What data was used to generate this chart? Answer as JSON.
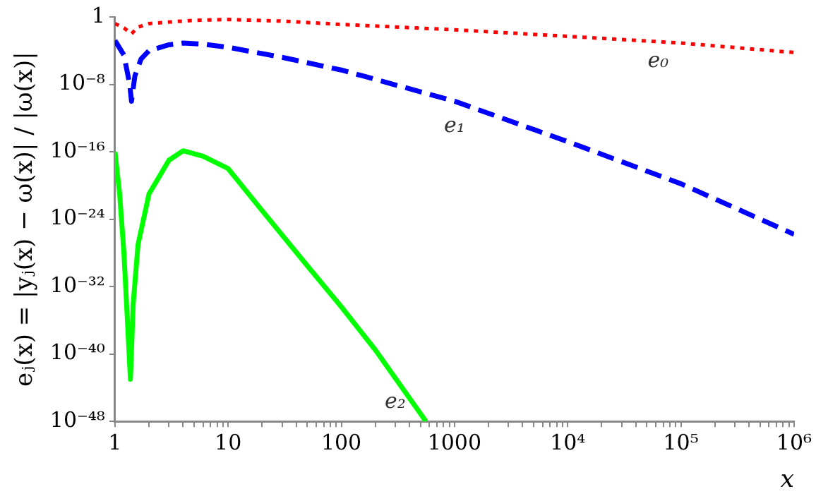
{
  "chart_data": {
    "type": "line",
    "xlabel": "x",
    "ylabel": "eⱼ(x) = |yⱼ(x) − ω(x)| / |ω(x)|",
    "log": "xy",
    "grid": false,
    "legend": false,
    "marker": "none",
    "xlim": [
      1,
      1000000
    ],
    "ylim": [
      1e-48,
      1
    ],
    "xticks": [
      1,
      {
        "value": 2,
        "label": null
      },
      {
        "value": 3,
        "label": null
      },
      {
        "value": 4,
        "label": null
      },
      {
        "value": 5,
        "label": null
      },
      {
        "value": 6,
        "label": null
      },
      {
        "value": 7,
        "label": null
      },
      {
        "value": 8,
        "label": null
      },
      {
        "value": 9,
        "label": null
      },
      10,
      {
        "value": 20,
        "label": null
      },
      {
        "value": 30,
        "label": null
      },
      {
        "value": 40,
        "label": null
      },
      {
        "value": 50,
        "label": null
      },
      {
        "value": 60,
        "label": null
      },
      {
        "value": 70,
        "label": null
      },
      {
        "value": 80,
        "label": null
      },
      {
        "value": 90,
        "label": null
      },
      100,
      {
        "value": 200,
        "label": null
      },
      {
        "value": 300,
        "label": null
      },
      {
        "value": 400,
        "label": null
      },
      {
        "value": 500,
        "label": null
      },
      {
        "value": 600,
        "label": null
      },
      {
        "value": 700,
        "label": null
      },
      {
        "value": 800,
        "label": null
      },
      {
        "value": 900,
        "label": null
      },
      1000,
      {
        "value": 2000,
        "label": null
      },
      {
        "value": 3000,
        "label": null
      },
      {
        "value": 4000,
        "label": null
      },
      {
        "value": 5000,
        "label": null
      },
      {
        "value": 6000,
        "label": null
      },
      {
        "value": 7000,
        "label": null
      },
      {
        "value": 8000,
        "label": null
      },
      {
        "value": 9000,
        "label": null
      },
      {
        "value": 10000,
        "label": "10⁴"
      },
      {
        "value": 20000,
        "label": null
      },
      {
        "value": 30000,
        "label": null
      },
      {
        "value": 40000,
        "label": null
      },
      {
        "value": 50000,
        "label": null
      },
      {
        "value": 60000,
        "label": null
      },
      {
        "value": 70000,
        "label": null
      },
      {
        "value": 80000,
        "label": null
      },
      {
        "value": 90000,
        "label": null
      },
      {
        "value": 100000,
        "label": "10⁵"
      },
      {
        "value": 200000,
        "label": null
      },
      {
        "value": 300000,
        "label": null
      },
      {
        "value": 400000,
        "label": null
      },
      {
        "value": 500000,
        "label": null
      },
      {
        "value": 600000,
        "label": null
      },
      {
        "value": 700000,
        "label": null
      },
      {
        "value": 800000,
        "label": null
      },
      {
        "value": 900000,
        "label": null
      },
      {
        "value": 1000000,
        "label": "10⁶"
      }
    ],
    "yticks": [
      {
        "value": 1e-48,
        "label": "10⁻⁴⁸"
      },
      {
        "value": 1e-40,
        "label": "10⁻⁴⁰"
      },
      {
        "value": 1e-32,
        "label": "10⁻³²"
      },
      {
        "value": 1e-24,
        "label": "10⁻²⁴"
      },
      {
        "value": 1e-16,
        "label": "10⁻¹⁶"
      },
      {
        "value": 1e-08,
        "label": "10⁻⁸"
      },
      1
    ],
    "series": [
      {
        "name": "e₀",
        "color": "#ff0000",
        "line_style": "dotted",
        "x": [
          1,
          1.2,
          1.4,
          1.6,
          2,
          3,
          5,
          10,
          30,
          100,
          1000,
          10000,
          100000,
          1000000
        ],
        "values": [
          0.16,
          0.05,
          0.01,
          0.063,
          0.16,
          0.25,
          0.4,
          0.5,
          0.32,
          0.13,
          0.03,
          0.005,
          0.0008,
          6e-05
        ]
      },
      {
        "name": "e₁",
        "color": "#0000ff",
        "line_style": "dashed",
        "x": [
          1,
          1.2,
          1.35,
          1.4,
          1.5,
          1.7,
          2,
          3,
          4,
          6,
          10,
          30,
          100,
          1000,
          10000,
          100000,
          1000000
        ],
        "values": [
          0.0016,
          3e-05,
          1e-08,
          1e-10,
          1e-07,
          1e-05,
          0.0001,
          0.0005,
          0.0008,
          0.0006,
          0.00025,
          1.6e-05,
          5e-07,
          1e-10,
          1.6e-15,
          1.6e-20,
          1.6e-26
        ]
      },
      {
        "name": "e₂",
        "color": "#00ff00",
        "line_style": "solid",
        "x": [
          1,
          1.1,
          1.2,
          1.3,
          1.37,
          1.45,
          1.6,
          2,
          3,
          4,
          6,
          10,
          20,
          50,
          100,
          200,
          560
        ],
        "values": [
          1e-16,
          1e-21,
          1e-28,
          1e-37,
          1e-43,
          1e-34,
          1e-27,
          1e-21,
          1e-17,
          1.3e-16,
          3e-17,
          1e-18,
          1e-23,
          3e-30,
          4e-35,
          3e-40,
          1e-48
        ]
      }
    ]
  }
}
